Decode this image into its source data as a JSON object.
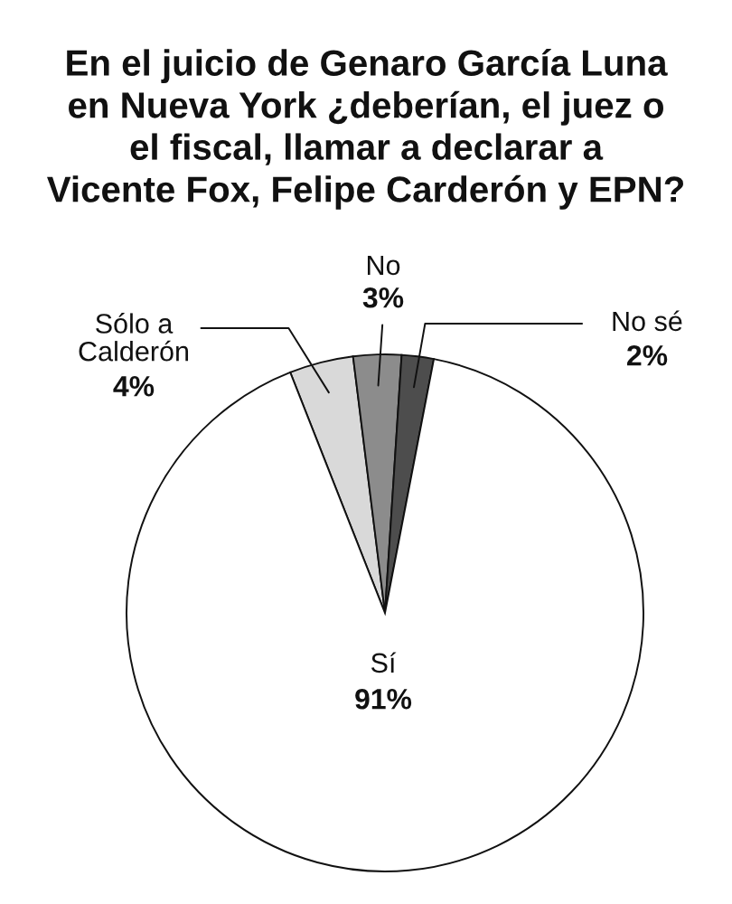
{
  "chart_data": {
    "type": "pie",
    "title": "En el juicio de Genaro García Luna\nen Nueva York ¿deberían, el juez o\nel fiscal, llamar a declarar a\nVicente Fox, Felipe Carderón y EPN?",
    "categories": [
      "Sólo a\nCalderón",
      "No",
      "No sé",
      "Sí"
    ],
    "values": [
      4,
      3,
      2,
      91
    ],
    "colors": [
      "#d9d9d9",
      "#8c8c8c",
      "#4d4d4d",
      "#ffffff"
    ],
    "value_labels": [
      "4%",
      "3%",
      "2%",
      "91%"
    ]
  }
}
